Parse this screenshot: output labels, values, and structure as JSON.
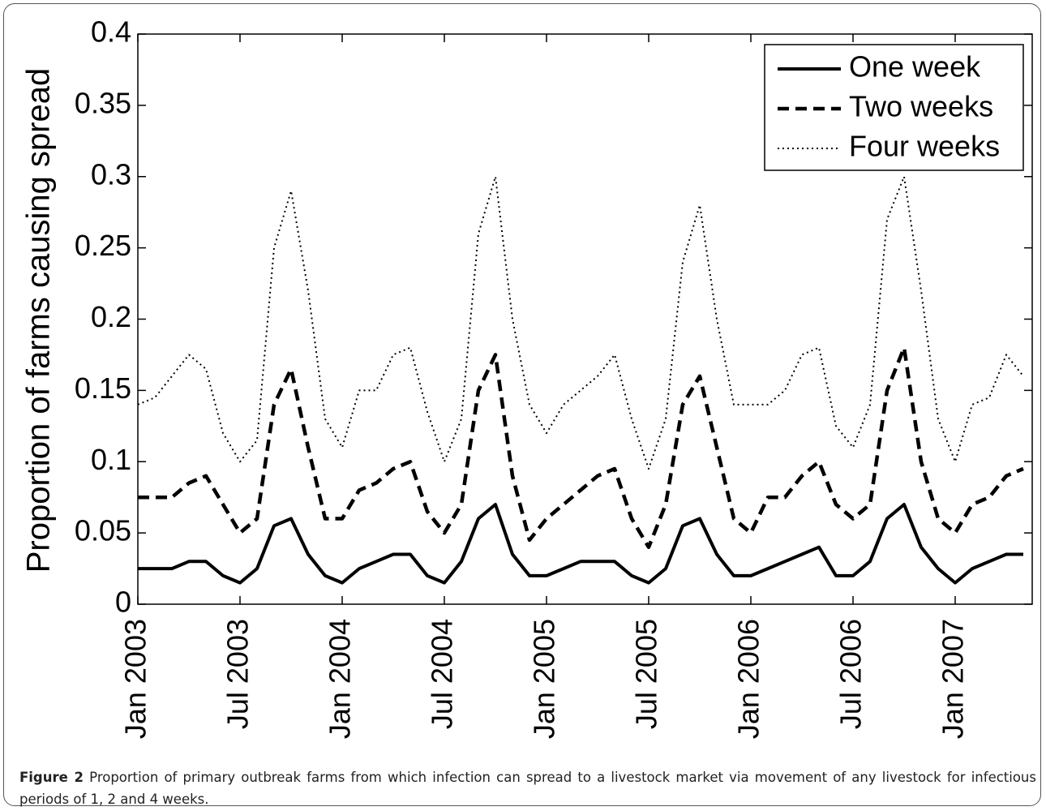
{
  "chart_data": {
    "type": "line",
    "ylabel": "Proportion of farms causing spread",
    "x": [
      "2003-01",
      "2003-02",
      "2003-03",
      "2003-04",
      "2003-05",
      "2003-06",
      "2003-07",
      "2003-08",
      "2003-09",
      "2003-10",
      "2003-11",
      "2003-12",
      "2004-01",
      "2004-02",
      "2004-03",
      "2004-04",
      "2004-05",
      "2004-06",
      "2004-07",
      "2004-08",
      "2004-09",
      "2004-10",
      "2004-11",
      "2004-12",
      "2005-01",
      "2005-02",
      "2005-03",
      "2005-04",
      "2005-05",
      "2005-06",
      "2005-07",
      "2005-08",
      "2005-09",
      "2005-10",
      "2005-11",
      "2005-12",
      "2006-01",
      "2006-02",
      "2006-03",
      "2006-04",
      "2006-05",
      "2006-06",
      "2006-07",
      "2006-08",
      "2006-09",
      "2006-10",
      "2006-11",
      "2006-12",
      "2007-01",
      "2007-02",
      "2007-03",
      "2007-04",
      "2007-05"
    ],
    "xlim": [
      "2003-01",
      "2007-05"
    ],
    "xticks": [
      {
        "value": "2003-01",
        "label": "Jan 2003"
      },
      {
        "value": "2003-07",
        "label": "Jul 2003"
      },
      {
        "value": "2004-01",
        "label": "Jan 2004"
      },
      {
        "value": "2004-07",
        "label": "Jul 2004"
      },
      {
        "value": "2005-01",
        "label": "Jan 2005"
      },
      {
        "value": "2005-07",
        "label": "Jul 2005"
      },
      {
        "value": "2006-01",
        "label": "Jan 2006"
      },
      {
        "value": "2006-07",
        "label": "Jul 2006"
      },
      {
        "value": "2007-01",
        "label": "Jan 2007"
      }
    ],
    "ylim": [
      0,
      0.4
    ],
    "yticks": [
      0,
      0.05,
      0.1,
      0.15,
      0.2,
      0.25,
      0.3,
      0.35,
      0.4
    ],
    "legend_position": "upper right",
    "series": [
      {
        "name": "One week",
        "color": "#000000",
        "dash": "solid",
        "values": [
          0.025,
          0.025,
          0.025,
          0.03,
          0.03,
          0.02,
          0.015,
          0.025,
          0.055,
          0.06,
          0.035,
          0.02,
          0.015,
          0.025,
          0.03,
          0.035,
          0.035,
          0.02,
          0.015,
          0.03,
          0.06,
          0.07,
          0.035,
          0.02,
          0.02,
          0.025,
          0.03,
          0.03,
          0.03,
          0.02,
          0.015,
          0.025,
          0.055,
          0.06,
          0.035,
          0.02,
          0.02,
          0.025,
          0.03,
          0.035,
          0.04,
          0.02,
          0.02,
          0.03,
          0.06,
          0.07,
          0.04,
          0.025,
          0.015,
          0.025,
          0.03,
          0.035,
          0.035
        ]
      },
      {
        "name": "Two weeks",
        "color": "#000000",
        "dash": "dashed",
        "values": [
          0.075,
          0.075,
          0.075,
          0.085,
          0.09,
          0.07,
          0.05,
          0.06,
          0.14,
          0.165,
          0.11,
          0.06,
          0.06,
          0.08,
          0.085,
          0.095,
          0.1,
          0.065,
          0.05,
          0.07,
          0.15,
          0.175,
          0.09,
          0.045,
          0.06,
          0.07,
          0.08,
          0.09,
          0.095,
          0.06,
          0.04,
          0.07,
          0.14,
          0.16,
          0.11,
          0.06,
          0.05,
          0.075,
          0.075,
          0.09,
          0.1,
          0.07,
          0.06,
          0.07,
          0.15,
          0.18,
          0.1,
          0.06,
          0.05,
          0.07,
          0.075,
          0.09,
          0.095
        ]
      },
      {
        "name": "Four weeks",
        "color": "#000000",
        "dash": "dotted",
        "values": [
          0.14,
          0.145,
          0.16,
          0.175,
          0.165,
          0.12,
          0.1,
          0.115,
          0.25,
          0.29,
          0.22,
          0.13,
          0.11,
          0.15,
          0.15,
          0.175,
          0.18,
          0.135,
          0.1,
          0.13,
          0.26,
          0.3,
          0.2,
          0.14,
          0.12,
          0.14,
          0.15,
          0.16,
          0.175,
          0.13,
          0.095,
          0.13,
          0.24,
          0.28,
          0.2,
          0.14,
          0.14,
          0.14,
          0.15,
          0.175,
          0.18,
          0.125,
          0.11,
          0.14,
          0.27,
          0.3,
          0.22,
          0.13,
          0.1,
          0.14,
          0.145,
          0.175,
          0.16
        ]
      }
    ]
  },
  "caption": {
    "label": "Figure 2",
    "text": "Proportion of primary outbreak farms from which infection can spread to a livestock market via movement of any livestock for infectious periods of 1, 2 and 4 weeks."
  }
}
